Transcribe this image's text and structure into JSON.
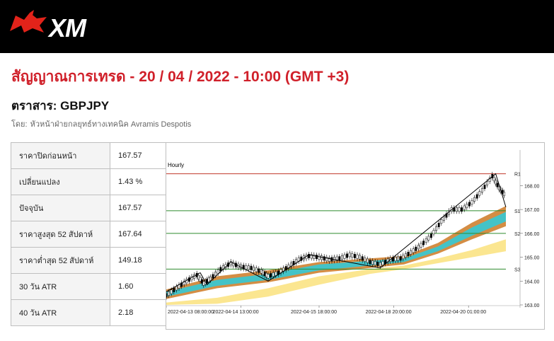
{
  "brand": {
    "logo_text": "XM",
    "logo_color": "#e2231a"
  },
  "header": {
    "title": "สัญญาณการเทรด - 20 / 04 / 2022 - 10:00 (GMT +3)",
    "instrument": "ตราสาร: GBPJPY",
    "byline_prefix": "โดย:",
    "byline_author": "หัวหน้าฝ่ายกลยุทธ์ทางเทคนิค Avramis Despotis"
  },
  "stats": [
    {
      "label": "ราคาปิดก่อนหน้า",
      "value": "167.57"
    },
    {
      "label": "เปลี่ยนแปลง",
      "value": "1.43 %"
    },
    {
      "label": "ปัจจุบัน",
      "value": "167.57"
    },
    {
      "label": "ราคาสูงสุด 52 สัปดาห์",
      "value": "167.64"
    },
    {
      "label": "ราคาต่ำสุด 52 สัปดาห์",
      "value": "149.18"
    },
    {
      "label": "30 วัน ATR",
      "value": "1.60"
    },
    {
      "label": "40 วัน ATR",
      "value": "2.18"
    }
  ],
  "chart_data": {
    "type": "line",
    "timeframe_label": "Hourly",
    "ylim": [
      163.0,
      169.2
    ],
    "y_ticks": [
      "168.00",
      "167.00",
      "166.00",
      "165.00",
      "164.00",
      "163.00"
    ],
    "x_ticks": [
      "2022-04-13 08:00:00",
      "2022-04-14 13:00:00",
      "2022-04-15 18:00:00",
      "2022-04-18 20:00:00",
      "2022-04-20 01:00:00"
    ],
    "levels": [
      {
        "name": "R1",
        "value": 168.5,
        "color": "#c0392b"
      },
      {
        "name": "S1",
        "value": 166.95,
        "color": "#2e8b2e"
      },
      {
        "name": "S2",
        "value": 166.0,
        "color": "#2e8b2e"
      },
      {
        "name": "S3",
        "value": 164.5,
        "color": "#2e8b2e"
      }
    ],
    "zigzag": [
      [
        0,
        163.55
      ],
      [
        0.1,
        164.35
      ],
      [
        0.12,
        163.85
      ],
      [
        0.19,
        164.8
      ],
      [
        0.3,
        164.0
      ],
      [
        0.42,
        165.1
      ],
      [
        0.63,
        164.55
      ],
      [
        0.97,
        168.5
      ],
      [
        1.0,
        167.1
      ]
    ],
    "price": [
      [
        0.0,
        163.4
      ],
      [
        0.03,
        163.7
      ],
      [
        0.06,
        164.0
      ],
      [
        0.09,
        164.25
      ],
      [
        0.11,
        163.9
      ],
      [
        0.13,
        164.1
      ],
      [
        0.16,
        164.5
      ],
      [
        0.19,
        164.75
      ],
      [
        0.22,
        164.6
      ],
      [
        0.25,
        164.55
      ],
      [
        0.28,
        164.4
      ],
      [
        0.3,
        164.2
      ],
      [
        0.33,
        164.35
      ],
      [
        0.36,
        164.6
      ],
      [
        0.39,
        164.9
      ],
      [
        0.42,
        165.05
      ],
      [
        0.45,
        165.0
      ],
      [
        0.48,
        164.9
      ],
      [
        0.51,
        164.95
      ],
      [
        0.54,
        165.1
      ],
      [
        0.57,
        165.0
      ],
      [
        0.6,
        164.8
      ],
      [
        0.63,
        164.7
      ],
      [
        0.66,
        164.9
      ],
      [
        0.69,
        164.95
      ],
      [
        0.72,
        165.2
      ],
      [
        0.75,
        165.5
      ],
      [
        0.78,
        165.9
      ],
      [
        0.81,
        166.5
      ],
      [
        0.84,
        167.0
      ],
      [
        0.87,
        167.0
      ],
      [
        0.9,
        167.3
      ],
      [
        0.93,
        167.8
      ],
      [
        0.96,
        168.4
      ],
      [
        0.98,
        167.9
      ],
      [
        1.0,
        167.57
      ]
    ],
    "band_brown": [
      [
        0.0,
        163.25,
        163.65
      ],
      [
        0.15,
        163.7,
        164.2
      ],
      [
        0.3,
        163.95,
        164.45
      ],
      [
        0.45,
        164.35,
        164.8
      ],
      [
        0.6,
        164.55,
        164.95
      ],
      [
        0.7,
        164.7,
        165.05
      ],
      [
        0.8,
        165.15,
        165.6
      ],
      [
        0.9,
        165.75,
        166.45
      ],
      [
        1.0,
        166.3,
        167.15
      ]
    ],
    "band_cyan": [
      [
        0.0,
        163.35,
        163.55
      ],
      [
        0.15,
        163.8,
        164.05
      ],
      [
        0.3,
        164.05,
        164.3
      ],
      [
        0.45,
        164.45,
        164.7
      ],
      [
        0.6,
        164.65,
        164.85
      ],
      [
        0.7,
        164.8,
        164.95
      ],
      [
        0.8,
        165.25,
        165.45
      ],
      [
        0.9,
        165.9,
        166.25
      ],
      [
        1.0,
        166.5,
        166.9
      ]
    ],
    "band_yellow": [
      [
        0.0,
        163.0,
        163.1
      ],
      [
        0.15,
        163.05,
        163.3
      ],
      [
        0.3,
        163.35,
        163.7
      ],
      [
        0.45,
        163.85,
        164.2
      ],
      [
        0.6,
        164.3,
        164.5
      ],
      [
        0.7,
        164.5,
        164.65
      ],
      [
        0.8,
        164.75,
        164.95
      ],
      [
        0.9,
        165.0,
        165.3
      ],
      [
        1.0,
        165.25,
        165.75
      ]
    ]
  }
}
